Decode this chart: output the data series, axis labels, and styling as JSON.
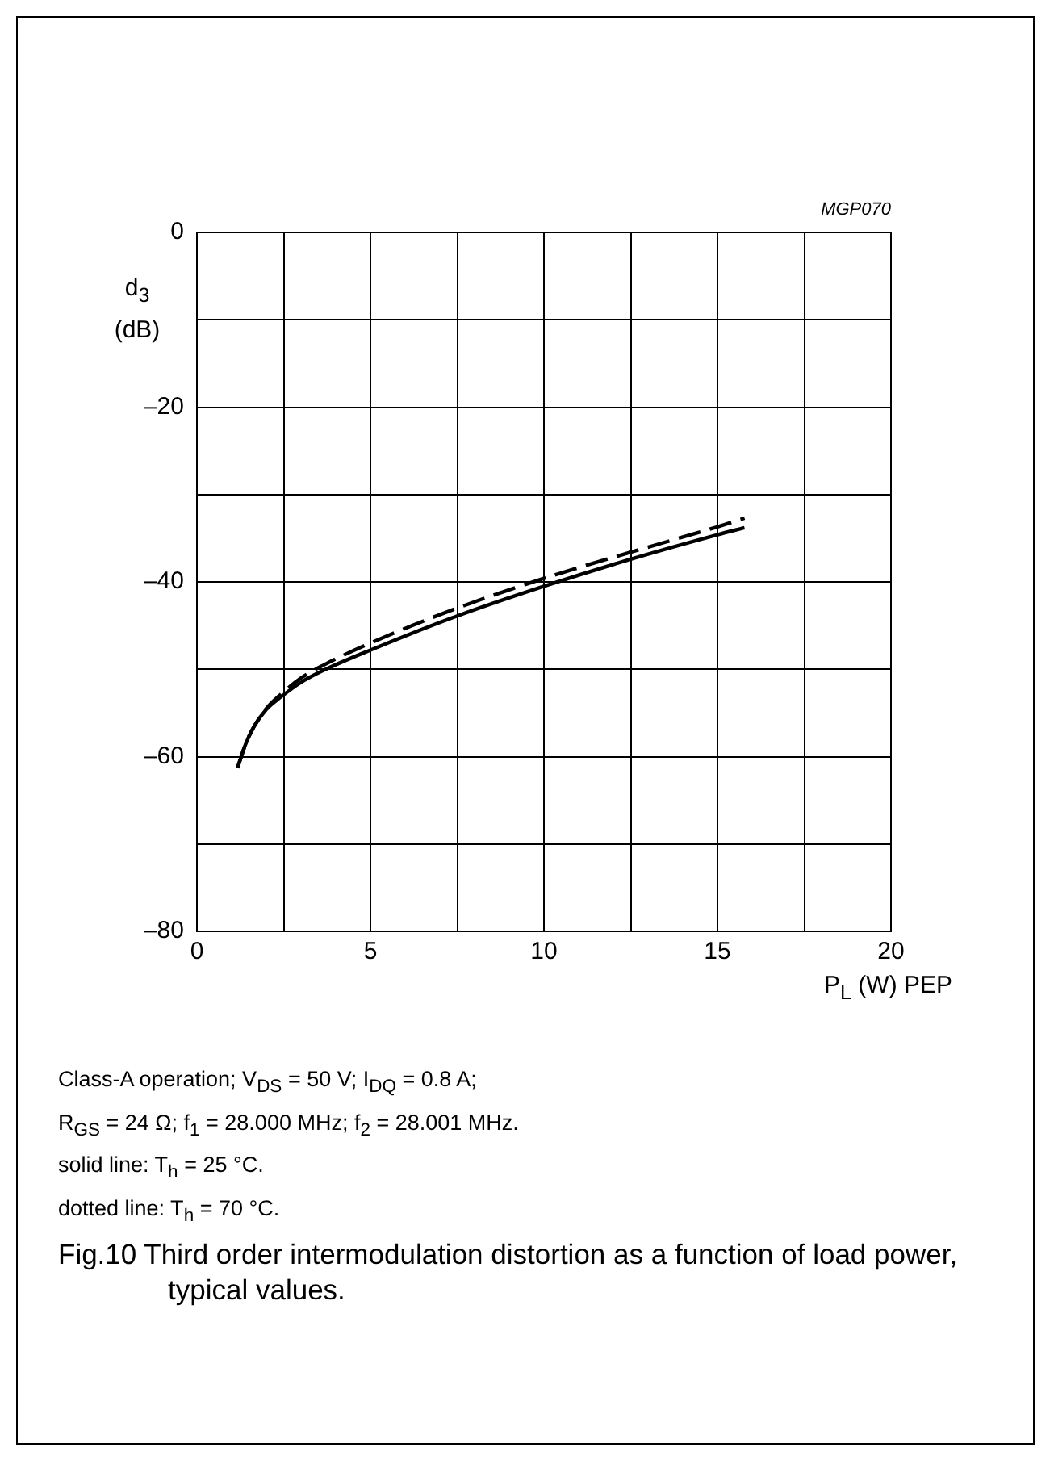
{
  "chart_data": {
    "type": "line",
    "title": "Fig.10  Third order intermodulation distortion as a function of load power, typical values.",
    "xlabel": "P$_{L}$ (W) PEP",
    "ylabel": "d$_{3}$ (dB)",
    "annotations": [
      "MGP070",
      "Class-A operation; V$_{DS}$ = 50 V;  I$_{DQ}$ = 0.8 A;",
      "R$_{GS}$ = 24 Ω; f$_{1}$ = 28.000 MHz; f$_{2}$ = 28.001 MHz.",
      "solid line: T$_{h}$ = 25 °C.",
      "dotted line: T$_{h}$ = 70 °C."
    ],
    "xlim": [
      0,
      20
    ],
    "xticks": [
      0,
      {
        "value": 2.5,
        "label": null
      },
      5,
      {
        "value": 7.5,
        "label": null
      },
      10,
      {
        "value": 12.5,
        "label": null
      },
      15,
      {
        "value": 17.5,
        "label": null
      },
      20
    ],
    "ylim": [
      -80,
      0
    ],
    "yticks": [
      {
        "value": -80,
        "label": "–80"
      },
      {
        "value": -70,
        "label": null
      },
      {
        "value": -60,
        "label": "–60"
      },
      {
        "value": -50,
        "label": null
      },
      {
        "value": -40,
        "label": "–40"
      },
      {
        "value": -30,
        "label": null
      },
      {
        "value": -20,
        "label": "–20"
      },
      {
        "value": -10,
        "label": null
      },
      0
    ],
    "grid": true,
    "marker": "none",
    "series": [
      {
        "color": "#000000",
        "line_style": "solid",
        "x": [
          1.17,
          1.4,
          1.64,
          2.0,
          2.41,
          3.0,
          3.66,
          5,
          7.5,
          10,
          12.5,
          15,
          15.78
        ],
        "values": [
          -61.3,
          -58.6,
          -56.6,
          -54.6,
          -53.2,
          -51.5,
          -50.1,
          -47.8,
          -43.9,
          -40.5,
          -37.4,
          -34.6,
          -33.8
        ]
      },
      {
        "color": "#000000",
        "line_style": "dashed",
        "x": [
          1.17,
          1.4,
          1.64,
          2.0,
          2.41,
          3.0,
          3.66,
          5,
          7.5,
          10,
          12.5,
          15,
          15.78
        ],
        "values": [
          -61.3,
          -58.6,
          -56.6,
          -54.5,
          -52.9,
          -51.0,
          -49.5,
          -47.0,
          -43.0,
          -39.6,
          -36.6,
          -33.7,
          -32.7
        ]
      }
    ]
  }
}
